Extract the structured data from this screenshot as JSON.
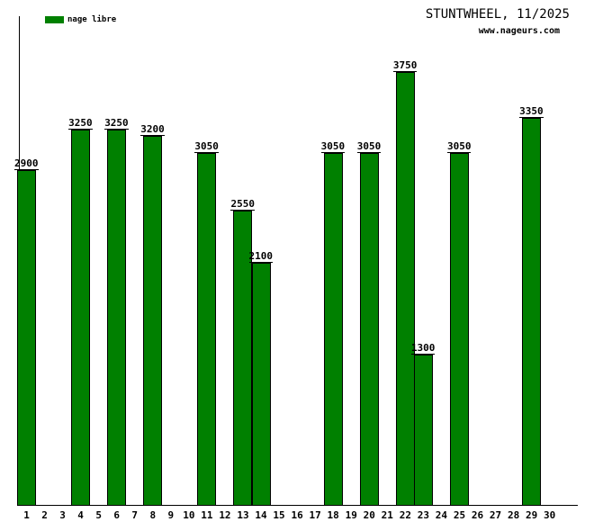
{
  "chart_data": {
    "type": "bar",
    "title": "STUNTWHEEL, 11/2025",
    "subtitle": "www.nageurs.com",
    "legend": [
      "nage libre"
    ],
    "legend_position": "top-left",
    "bar_color": "#008000",
    "axis_color": "#000000",
    "text_color": "#000000",
    "background_color": "#ffffff",
    "xlabel": "",
    "ylabel": "",
    "grid": false,
    "ylim": [
      0,
      4200
    ],
    "categories": [
      "1",
      "2",
      "3",
      "4",
      "5",
      "6",
      "7",
      "8",
      "9",
      "10",
      "11",
      "12",
      "13",
      "14",
      "15",
      "16",
      "17",
      "18",
      "19",
      "20",
      "21",
      "22",
      "23",
      "24",
      "25",
      "26",
      "27",
      "28",
      "29",
      "30"
    ],
    "values": [
      2900,
      null,
      null,
      3250,
      null,
      3250,
      null,
      3200,
      null,
      null,
      3050,
      null,
      2550,
      2100,
      null,
      null,
      null,
      3050,
      null,
      3050,
      null,
      3750,
      1300,
      null,
      3050,
      null,
      null,
      null,
      3350,
      null
    ]
  }
}
